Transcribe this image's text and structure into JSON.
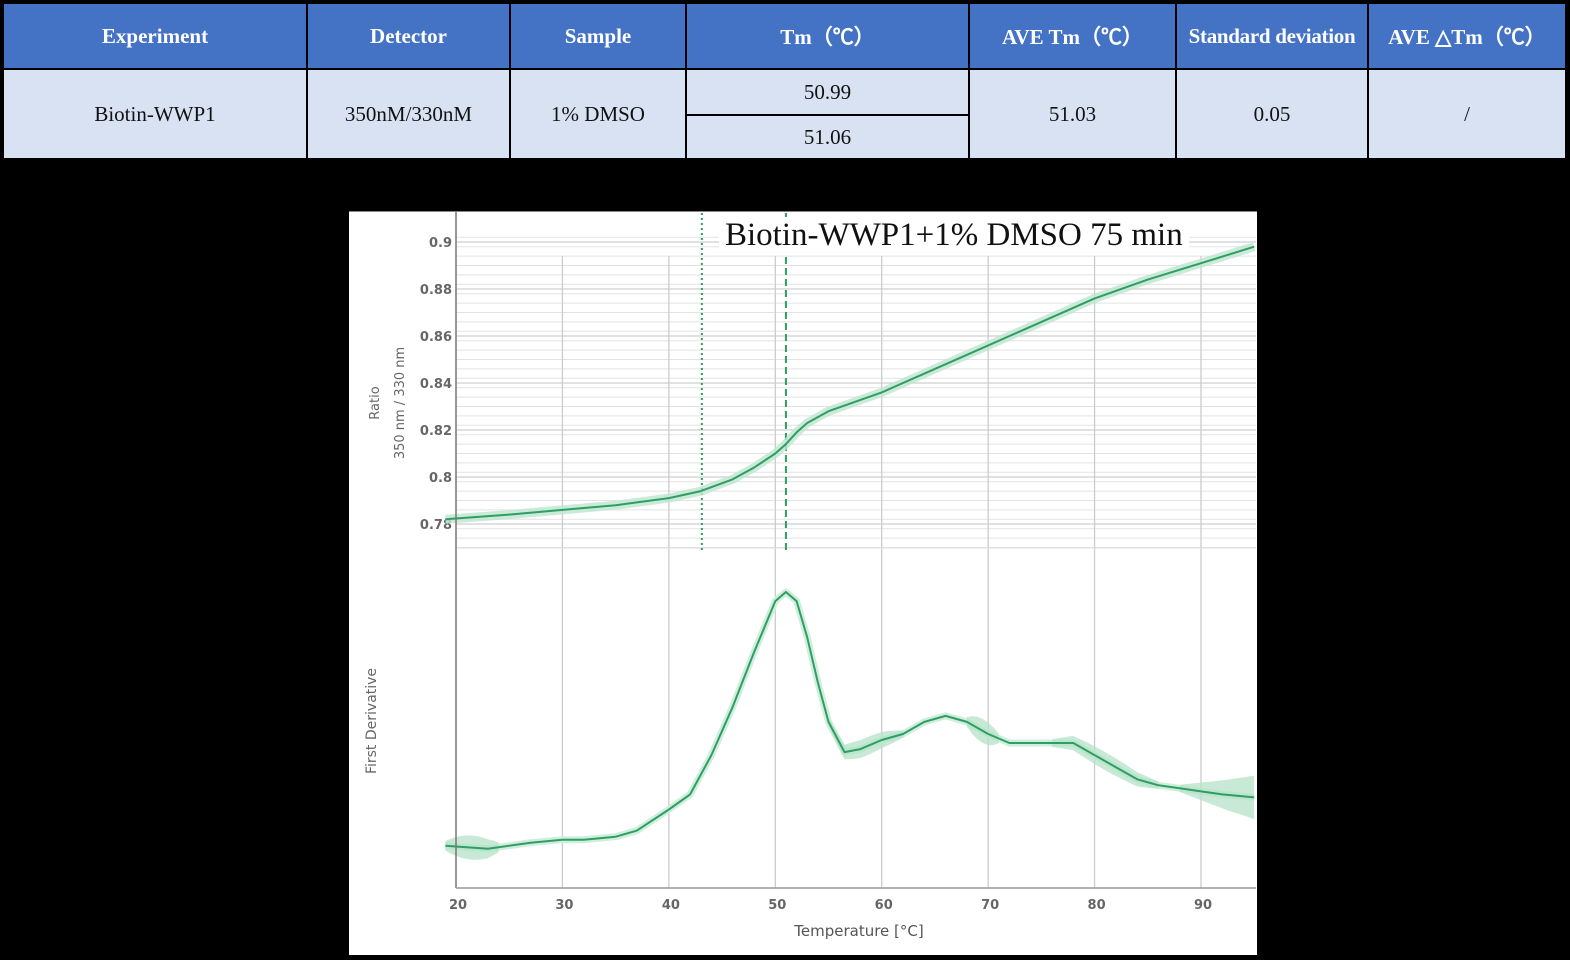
{
  "table": {
    "headers": [
      "Experiment",
      "Detector",
      "Sample",
      "Tm（℃）",
      "AVE Tm（℃）",
      "Standard deviation",
      "AVE △Tm（℃）"
    ],
    "row": {
      "experiment": "Biotin-WWP1",
      "detector": "350nM/330nM",
      "sample": "1% DMSO",
      "tm_values": [
        "50.99",
        "51.06"
      ],
      "ave_tm": "51.03",
      "std_dev": "0.05",
      "ave_delta_tm": "/"
    },
    "colors": {
      "header_bg": "#4472c4",
      "body_bg": "#d9e2f3"
    }
  },
  "chart_data": [
    {
      "type": "line",
      "title": "Biotin-WWP1+1% DMSO 75 min",
      "xlabel": "Temperature [°C]",
      "ylabel": "Ratio 350 nm / 330 nm",
      "xlim": [
        19,
        95
      ],
      "ylim": [
        0.766,
        0.905
      ],
      "yticks": [
        0.9,
        0.88,
        0.86,
        0.84,
        0.82,
        0.8,
        0.78
      ],
      "ytick_labels": [
        "0.9",
        "0.88",
        "0.86",
        "0.84",
        "0.82",
        "0.8",
        "0.78"
      ],
      "grid": true,
      "series": [
        {
          "name": "Ratio",
          "color": "#2e9e63",
          "x": [
            19,
            25,
            30,
            35,
            40,
            43,
            46,
            48,
            50,
            51,
            52,
            53,
            55,
            60,
            65,
            70,
            75,
            80,
            85,
            90,
            95
          ],
          "y": [
            0.782,
            0.784,
            0.786,
            0.788,
            0.791,
            0.794,
            0.799,
            0.804,
            0.81,
            0.814,
            0.819,
            0.823,
            0.828,
            0.836,
            0.846,
            0.856,
            0.866,
            0.876,
            0.884,
            0.891,
            0.898
          ]
        }
      ],
      "vlines": [
        {
          "x": 43.1,
          "style": "dotted"
        },
        {
          "x": 51.0,
          "style": "dashed"
        }
      ]
    },
    {
      "type": "line",
      "xlabel": "Temperature [°C]",
      "ylabel": "First Derivative",
      "xticks": [
        20,
        30,
        40,
        50,
        60,
        70,
        80,
        90
      ],
      "xlim": [
        19,
        95
      ],
      "ylim": [
        0,
        100
      ],
      "grid": true,
      "series": [
        {
          "name": "First Derivative",
          "color": "#2e9e63",
          "x": [
            19,
            23,
            27,
            30,
            32,
            35,
            37,
            40,
            42,
            44,
            46,
            48,
            50,
            51,
            52,
            53,
            54,
            55,
            56.5,
            58,
            60,
            62,
            64,
            66,
            68,
            70,
            72,
            74,
            76,
            78,
            80,
            82,
            84,
            86,
            88,
            90,
            92,
            95
          ],
          "y": [
            14,
            13,
            15,
            16,
            16,
            17,
            19,
            26,
            31,
            44,
            60,
            78,
            95,
            98,
            95,
            83,
            68,
            55,
            45,
            46,
            49,
            51,
            55,
            57,
            55,
            51,
            48,
            48,
            48,
            48,
            44,
            40,
            36,
            34,
            33,
            32,
            31,
            30
          ]
        }
      ],
      "bands": [
        {
          "x_from": 19,
          "x_to": 24,
          "width": 4
        },
        {
          "x_from": 55,
          "x_to": 62,
          "width": 3
        },
        {
          "x_from": 68,
          "x_to": 71,
          "width": 4
        },
        {
          "x_from": 76,
          "x_to": 86,
          "width": 3
        },
        {
          "x_from": 88,
          "x_to": 95,
          "width": 6
        }
      ]
    }
  ]
}
